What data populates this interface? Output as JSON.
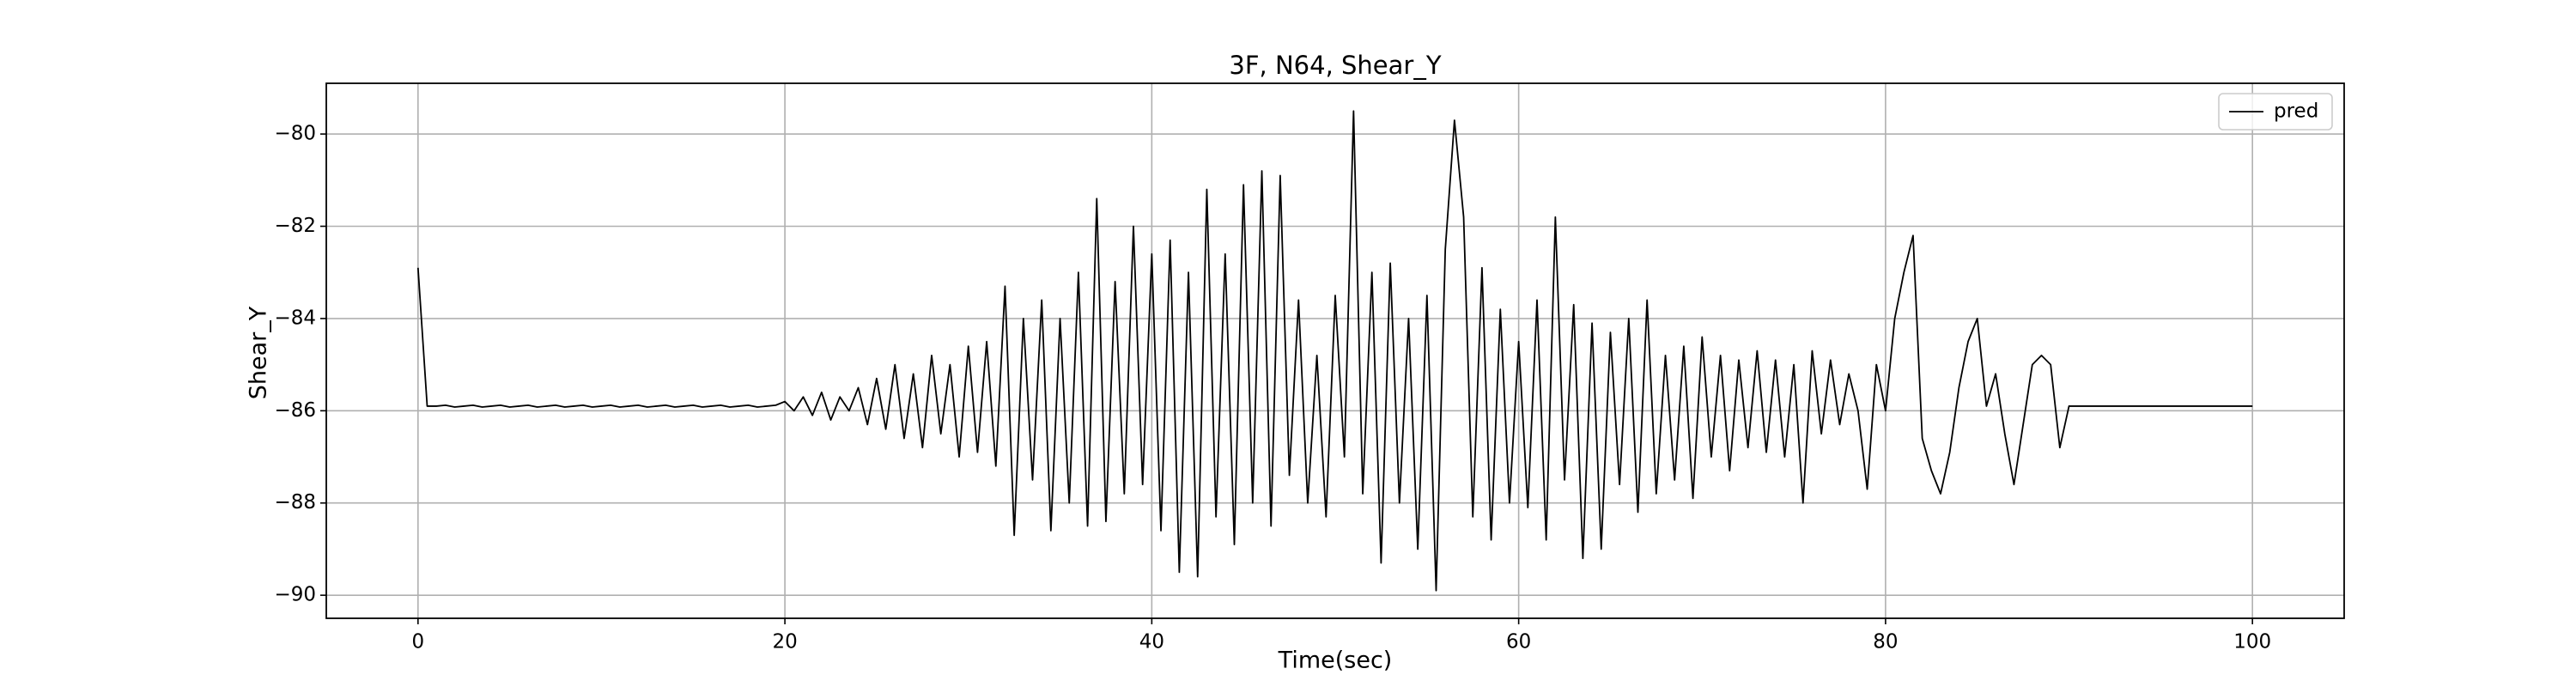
{
  "chart_data": {
    "type": "line",
    "title": "3F, N64, Shear_Y",
    "xlabel": "Time(sec)",
    "ylabel": "Shear_Y",
    "x": [
      0,
      0.5,
      1,
      1.5,
      2,
      2.5,
      3,
      3.5,
      4,
      4.5,
      5,
      5.5,
      6,
      6.5,
      7,
      7.5,
      8,
      8.5,
      9,
      9.5,
      10,
      10.5,
      11,
      11.5,
      12,
      12.5,
      13,
      13.5,
      14,
      14.5,
      15,
      15.5,
      16,
      16.5,
      17,
      17.5,
      18,
      18.5,
      19,
      19.5,
      20,
      20.5,
      21,
      21.5,
      22,
      22.5,
      23,
      23.5,
      24,
      24.5,
      25,
      25.5,
      26,
      26.5,
      27,
      27.5,
      28,
      28.5,
      29,
      29.5,
      30,
      30.5,
      31,
      31.5,
      32,
      32.5,
      33,
      33.5,
      34,
      34.5,
      35,
      35.5,
      36,
      36.5,
      37,
      37.5,
      38,
      38.5,
      39,
      39.5,
      40,
      40.5,
      41,
      41.5,
      42,
      42.5,
      43,
      43.5,
      44,
      44.5,
      45,
      45.5,
      46,
      46.5,
      47,
      47.5,
      48,
      48.5,
      49,
      49.5,
      50,
      50.5,
      51,
      51.5,
      52,
      52.5,
      53,
      53.5,
      54,
      54.5,
      55,
      55.5,
      56,
      56.5,
      57,
      57.5,
      58,
      58.5,
      59,
      59.5,
      60,
      60.5,
      61,
      61.5,
      62,
      62.5,
      63,
      63.5,
      64,
      64.5,
      65,
      65.5,
      66,
      66.5,
      67,
      67.5,
      68,
      68.5,
      69,
      69.5,
      70,
      70.5,
      71,
      71.5,
      72,
      72.5,
      73,
      73.5,
      74,
      74.5,
      75,
      75.5,
      76,
      76.5,
      77,
      77.5,
      78,
      78.5,
      79,
      79.5,
      80,
      80.5,
      81,
      81.5,
      82,
      82.5,
      83,
      83.5,
      84,
      84.5,
      85,
      85.5,
      86,
      86.5,
      87,
      87.5,
      88,
      88.5,
      89,
      89.5,
      90,
      90.5,
      91,
      91.5,
      92,
      92.5,
      93,
      93.5,
      94,
      94.5,
      95,
      95.5,
      96,
      96.5,
      97,
      97.5,
      98,
      98.5,
      99,
      99.5,
      100
    ],
    "series": [
      {
        "name": "pred",
        "color": "#000000",
        "values": [
          -82.9,
          -85.9,
          -85.9,
          -85.88,
          -85.92,
          -85.9,
          -85.88,
          -85.92,
          -85.9,
          -85.88,
          -85.92,
          -85.9,
          -85.88,
          -85.92,
          -85.9,
          -85.88,
          -85.92,
          -85.9,
          -85.88,
          -85.92,
          -85.9,
          -85.88,
          -85.92,
          -85.9,
          -85.88,
          -85.92,
          -85.9,
          -85.88,
          -85.92,
          -85.9,
          -85.88,
          -85.92,
          -85.9,
          -85.88,
          -85.92,
          -85.9,
          -85.88,
          -85.92,
          -85.9,
          -85.88,
          -85.8,
          -86.0,
          -85.7,
          -86.1,
          -85.6,
          -86.2,
          -85.7,
          -86.0,
          -85.5,
          -86.3,
          -85.3,
          -86.4,
          -85.0,
          -86.6,
          -85.2,
          -86.8,
          -84.8,
          -86.5,
          -85.0,
          -87.0,
          -84.6,
          -86.9,
          -84.5,
          -87.2,
          -83.3,
          -88.7,
          -84.0,
          -87.5,
          -83.6,
          -88.6,
          -84.0,
          -88.0,
          -83.0,
          -88.5,
          -81.4,
          -88.4,
          -83.2,
          -87.8,
          -82.0,
          -87.6,
          -82.6,
          -88.6,
          -82.3,
          -89.5,
          -83.0,
          -89.6,
          -81.2,
          -88.3,
          -82.6,
          -88.9,
          -81.1,
          -88.0,
          -80.8,
          -88.5,
          -80.9,
          -87.4,
          -83.6,
          -88.0,
          -84.8,
          -88.3,
          -83.5,
          -87.0,
          -79.5,
          -87.8,
          -83.0,
          -89.3,
          -82.8,
          -88.0,
          -84.0,
          -89.0,
          -83.5,
          -89.9,
          -82.5,
          -79.7,
          -81.8,
          -88.3,
          -82.9,
          -88.8,
          -83.8,
          -88.0,
          -84.5,
          -88.1,
          -83.6,
          -88.8,
          -81.8,
          -87.5,
          -83.7,
          -89.2,
          -84.1,
          -89.0,
          -84.3,
          -87.6,
          -84.0,
          -88.2,
          -83.6,
          -87.8,
          -84.8,
          -87.5,
          -84.6,
          -87.9,
          -84.4,
          -87.0,
          -84.8,
          -87.3,
          -84.9,
          -86.8,
          -84.7,
          -86.9,
          -84.9,
          -87.0,
          -85.0,
          -88.0,
          -84.7,
          -86.5,
          -84.9,
          -86.3,
          -85.2,
          -86.0,
          -87.7,
          -85.0,
          -86.0,
          -84.0,
          -83.0,
          -82.2,
          -86.6,
          -87.3,
          -87.8,
          -86.9,
          -85.5,
          -84.5,
          -84.0,
          -85.9,
          -85.2,
          -86.5,
          -87.6,
          -86.3,
          -85.0,
          -84.8,
          -85.0,
          -86.8,
          -85.9,
          -85.9,
          -85.9,
          -85.9,
          -85.9,
          -85.9,
          -85.9,
          -85.9,
          -85.9,
          -85.9,
          -85.9,
          -85.9,
          -85.9,
          -85.9,
          -85.9,
          -85.9,
          -85.9,
          -85.9,
          -85.9,
          -85.9,
          -85.9
        ]
      }
    ],
    "xlim": [
      -5,
      105
    ],
    "ylim": [
      -90.5,
      -78.9
    ],
    "xticks": [
      0,
      20,
      40,
      60,
      80,
      100
    ],
    "yticks": [
      {
        "value": -90,
        "label": "−90"
      },
      {
        "value": -88,
        "label": "−88"
      },
      {
        "value": -86,
        "label": "−86"
      },
      {
        "value": -84,
        "label": "−84"
      },
      {
        "value": -82,
        "label": "−82"
      },
      {
        "value": -80,
        "label": "−80"
      }
    ],
    "grid": true,
    "legend": "upper right"
  }
}
